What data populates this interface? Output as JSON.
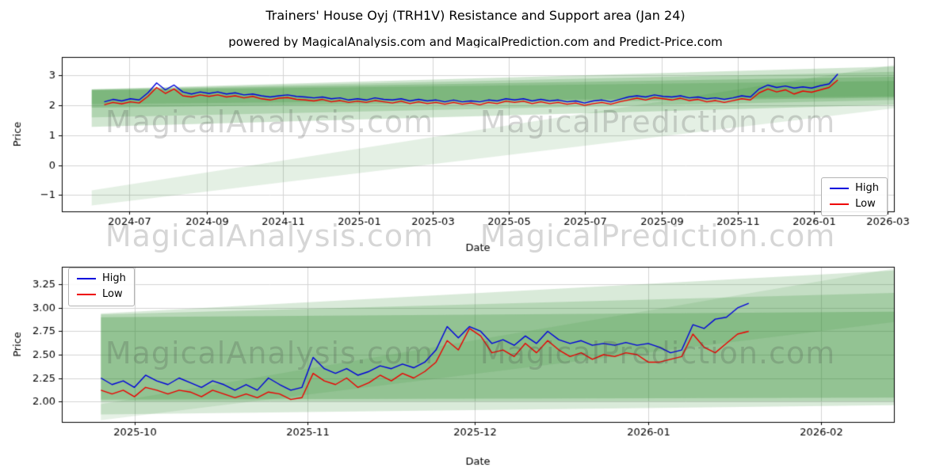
{
  "figure": {
    "title": "Trainers' House Oyj (TRH1V) Resistance and Support area (Jan 24)",
    "subtitle": "powered by MagicalAnalysis.com and MagicalPrediction.com and Predict-Price.com",
    "watermarks": [
      "MagicalAnalysis.com",
      "MagicalPrediction.com"
    ],
    "colors": {
      "high_line": "#0000dd",
      "low_line": "#ee0000",
      "band_rgb": "46,139,46",
      "grid": "#d4d4d4",
      "spine": "#000000"
    }
  },
  "chart_data": [
    {
      "type": "line",
      "title": "",
      "xlabel": "Date",
      "ylabel": "Price",
      "grid": true,
      "legend_position": "center right",
      "xlim": [
        -24,
        643
      ],
      "ylim": [
        -1.55,
        3.62
      ],
      "xticks": [
        {
          "v": 30,
          "label": "2024-07"
        },
        {
          "v": 92,
          "label": "2024-09"
        },
        {
          "v": 153,
          "label": "2024-11"
        },
        {
          "v": 214,
          "label": "2025-01"
        },
        {
          "v": 273,
          "label": "2025-03"
        },
        {
          "v": 334,
          "label": "2025-05"
        },
        {
          "v": 395,
          "label": "2025-07"
        },
        {
          "v": 457,
          "label": "2025-09"
        },
        {
          "v": 518,
          "label": "2025-11"
        },
        {
          "v": 579,
          "label": "2026-01"
        },
        {
          "v": 638,
          "label": "2026-03"
        }
      ],
      "yticks": [
        {
          "v": -1,
          "label": "−1"
        },
        {
          "v": 0,
          "label": "0"
        },
        {
          "v": 1,
          "label": "1"
        },
        {
          "v": 2,
          "label": "2"
        },
        {
          "v": 3,
          "label": "3"
        }
      ],
      "x": [
        10,
        17,
        24,
        31,
        38,
        45,
        52,
        59,
        66,
        73,
        80,
        87,
        94,
        101,
        108,
        115,
        122,
        129,
        136,
        143,
        150,
        157,
        164,
        171,
        178,
        185,
        192,
        199,
        206,
        213,
        220,
        227,
        234,
        241,
        248,
        255,
        262,
        269,
        276,
        283,
        290,
        297,
        304,
        311,
        318,
        325,
        332,
        339,
        346,
        353,
        360,
        367,
        374,
        381,
        388,
        395,
        402,
        409,
        416,
        423,
        430,
        437,
        444,
        451,
        458,
        465,
        472,
        479,
        486,
        493,
        500,
        507,
        514,
        521,
        528,
        535,
        542,
        549,
        556,
        563,
        570,
        577,
        584,
        591,
        598
      ],
      "series": [
        {
          "name": "High",
          "color": "#0000dd",
          "values": [
            2.12,
            2.2,
            2.15,
            2.22,
            2.18,
            2.42,
            2.75,
            2.52,
            2.68,
            2.45,
            2.38,
            2.45,
            2.4,
            2.45,
            2.38,
            2.42,
            2.35,
            2.38,
            2.32,
            2.28,
            2.32,
            2.35,
            2.3,
            2.28,
            2.25,
            2.28,
            2.22,
            2.25,
            2.18,
            2.22,
            2.18,
            2.25,
            2.2,
            2.18,
            2.22,
            2.15,
            2.2,
            2.15,
            2.18,
            2.12,
            2.18,
            2.12,
            2.15,
            2.12,
            2.18,
            2.15,
            2.22,
            2.18,
            2.22,
            2.15,
            2.2,
            2.15,
            2.18,
            2.12,
            2.15,
            2.08,
            2.15,
            2.18,
            2.12,
            2.2,
            2.28,
            2.32,
            2.28,
            2.35,
            2.3,
            2.28,
            2.32,
            2.25,
            2.28,
            2.22,
            2.25,
            2.2,
            2.25,
            2.32,
            2.28,
            2.55,
            2.68,
            2.6,
            2.65,
            2.58,
            2.62,
            2.58,
            2.66,
            2.72,
            3.05
          ]
        },
        {
          "name": "Low",
          "color": "#ee0000",
          "values": [
            2.02,
            2.1,
            2.05,
            2.12,
            2.08,
            2.3,
            2.6,
            2.4,
            2.55,
            2.32,
            2.28,
            2.35,
            2.3,
            2.35,
            2.28,
            2.32,
            2.25,
            2.3,
            2.22,
            2.18,
            2.24,
            2.26,
            2.2,
            2.18,
            2.15,
            2.2,
            2.12,
            2.16,
            2.1,
            2.14,
            2.1,
            2.16,
            2.12,
            2.08,
            2.14,
            2.06,
            2.12,
            2.06,
            2.1,
            2.04,
            2.1,
            2.04,
            2.08,
            2.02,
            2.1,
            2.06,
            2.14,
            2.1,
            2.14,
            2.06,
            2.12,
            2.06,
            2.1,
            2.04,
            2.08,
            2.0,
            2.06,
            2.1,
            2.04,
            2.12,
            2.18,
            2.24,
            2.18,
            2.26,
            2.22,
            2.18,
            2.24,
            2.16,
            2.2,
            2.12,
            2.16,
            2.1,
            2.16,
            2.22,
            2.18,
            2.42,
            2.55,
            2.45,
            2.52,
            2.38,
            2.48,
            2.44,
            2.52,
            2.6,
            2.85
          ]
        }
      ],
      "bands": [
        {
          "x0": 0,
          "x1": 643,
          "y0": [
            -1.35,
            -0.85
          ],
          "y1": [
            1.9,
            3.35
          ],
          "alpha": 0.13
        },
        {
          "x0": 0,
          "x1": 643,
          "y0": [
            1.28,
            2.54
          ],
          "y1": [
            2.02,
            3.3
          ],
          "alpha": 0.22
        },
        {
          "x0": 0,
          "x1": 643,
          "y0": [
            1.6,
            2.53
          ],
          "y1": [
            2.18,
            3.12
          ],
          "alpha": 0.2
        },
        {
          "x0": 0,
          "x1": 643,
          "y0": [
            1.92,
            2.52
          ],
          "y1": [
            2.26,
            2.96
          ],
          "alpha": 0.24
        },
        {
          "x0": 0,
          "x1": 643,
          "y0": [
            2.04,
            2.5
          ],
          "y1": [
            2.3,
            2.82
          ],
          "alpha": 0.2
        }
      ]
    },
    {
      "type": "line",
      "title": "",
      "xlabel": "Date",
      "ylabel": "Price",
      "grid": true,
      "legend_position": "upper left",
      "xlim": [
        -7,
        142
      ],
      "ylim": [
        1.78,
        3.44
      ],
      "xticks": [
        {
          "v": 6,
          "label": "2025-10"
        },
        {
          "v": 37,
          "label": "2025-11"
        },
        {
          "v": 67,
          "label": "2025-12"
        },
        {
          "v": 98,
          "label": "2026-01"
        },
        {
          "v": 129,
          "label": "2026-02"
        }
      ],
      "yticks": [
        {
          "v": 2.0,
          "label": "2.00"
        },
        {
          "v": 2.25,
          "label": "2.25"
        },
        {
          "v": 2.5,
          "label": "2.50"
        },
        {
          "v": 2.75,
          "label": "2.75"
        },
        {
          "v": 3.0,
          "label": "3.00"
        },
        {
          "v": 3.25,
          "label": "3.25"
        }
      ],
      "x": [
        0,
        2,
        4,
        6,
        8,
        10,
        12,
        14,
        16,
        18,
        20,
        22,
        24,
        26,
        28,
        30,
        32,
        34,
        36,
        38,
        40,
        42,
        44,
        46,
        48,
        50,
        52,
        54,
        56,
        58,
        60,
        62,
        64,
        66,
        68,
        70,
        72,
        74,
        76,
        78,
        80,
        82,
        84,
        86,
        88,
        90,
        92,
        94,
        96,
        98,
        100,
        102,
        104,
        106,
        108,
        110,
        112,
        114,
        116
      ],
      "series": [
        {
          "name": "High",
          "color": "#0000dd",
          "values": [
            2.25,
            2.18,
            2.22,
            2.15,
            2.28,
            2.22,
            2.18,
            2.25,
            2.2,
            2.15,
            2.22,
            2.18,
            2.12,
            2.18,
            2.12,
            2.25,
            2.18,
            2.12,
            2.15,
            2.47,
            2.35,
            2.3,
            2.35,
            2.28,
            2.32,
            2.38,
            2.35,
            2.4,
            2.36,
            2.42,
            2.55,
            2.8,
            2.68,
            2.8,
            2.75,
            2.62,
            2.66,
            2.6,
            2.7,
            2.62,
            2.75,
            2.66,
            2.62,
            2.65,
            2.6,
            2.62,
            2.6,
            2.63,
            2.6,
            2.62,
            2.58,
            2.52,
            2.55,
            2.82,
            2.78,
            2.88,
            2.9,
            3.0,
            3.05
          ]
        },
        {
          "name": "Low",
          "color": "#ee0000",
          "values": [
            2.12,
            2.08,
            2.12,
            2.05,
            2.15,
            2.12,
            2.08,
            2.12,
            2.1,
            2.05,
            2.12,
            2.08,
            2.04,
            2.08,
            2.04,
            2.1,
            2.08,
            2.02,
            2.04,
            2.3,
            2.22,
            2.18,
            2.25,
            2.15,
            2.2,
            2.28,
            2.22,
            2.3,
            2.25,
            2.32,
            2.42,
            2.65,
            2.55,
            2.78,
            2.7,
            2.52,
            2.55,
            2.48,
            2.62,
            2.52,
            2.65,
            2.55,
            2.48,
            2.52,
            2.45,
            2.5,
            2.48,
            2.52,
            2.5,
            2.42,
            2.42,
            2.45,
            2.48,
            2.72,
            2.58,
            2.52,
            2.62,
            2.72,
            2.75
          ]
        }
      ],
      "bands": [
        {
          "x0": 0,
          "x1": 142,
          "y0": [
            1.8,
            1.97
          ],
          "y1": [
            2.85,
            3.42
          ],
          "alpha": 0.12
        },
        {
          "x0": 0,
          "x1": 142,
          "y0": [
            1.86,
            2.94
          ],
          "y1": [
            1.96,
            3.4
          ],
          "alpha": 0.18
        },
        {
          "x0": 0,
          "x1": 142,
          "y0": [
            2.0,
            2.93
          ],
          "y1": [
            2.0,
            3.16
          ],
          "alpha": 0.2
        },
        {
          "x0": 0,
          "x1": 142,
          "y0": [
            2.02,
            2.9
          ],
          "y1": [
            2.04,
            2.96
          ],
          "alpha": 0.26
        }
      ]
    }
  ]
}
